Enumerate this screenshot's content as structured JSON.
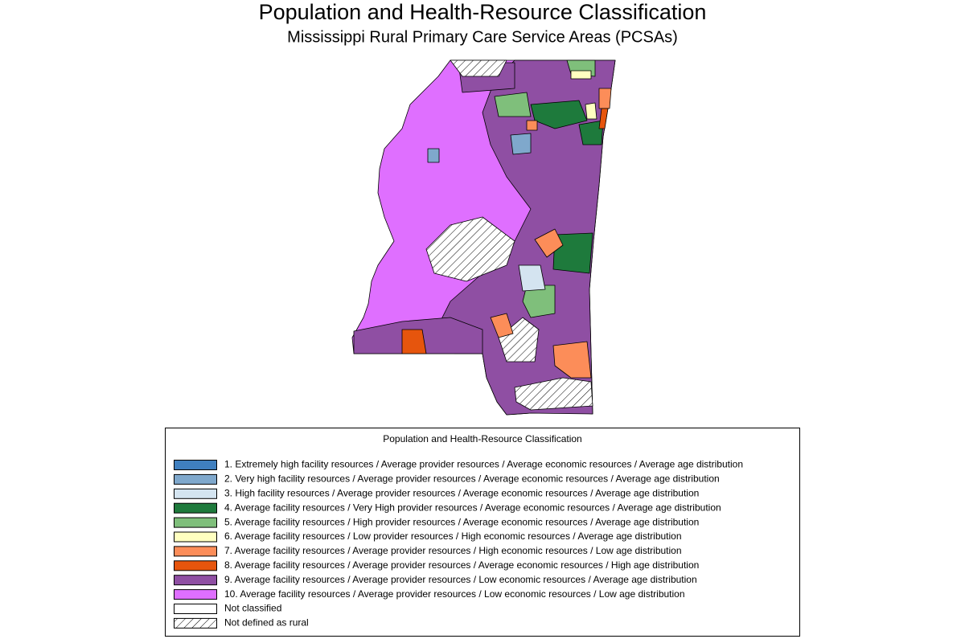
{
  "title": "Population and Health-Resource Classification",
  "subtitle": "Mississippi Rural Primary Care Service Areas (PCSAs)",
  "legend": {
    "title": "Population and Health-Resource Classification",
    "items": [
      {
        "label": "1. Extremely high facility resources / Average provider resources / Average economic resources / Average age distribution",
        "color": "#3f7fbf"
      },
      {
        "label": "2. Very high facility resources / Average provider resources / Average economic resources / Average age distribution",
        "color": "#7fa8cc"
      },
      {
        "label": "3. High facility resources / Average provider resources / Average economic resources / Average age distribution",
        "color": "#d4e4f0"
      },
      {
        "label": "4. Average facility resources / Very High provider resources / Average economic resources / Average age distribution",
        "color": "#1e7a3c"
      },
      {
        "label": "5. Average facility resources / High provider resources / Average economic resources / Average age distribution",
        "color": "#7fbf7b"
      },
      {
        "label": "6. Average facility resources / Low provider resources / High economic resources / Average age distribution",
        "color": "#ffffc0"
      },
      {
        "label": "7. Average facility resources / Average provider resources / High economic resources / Low age distribution",
        "color": "#fc8d59"
      },
      {
        "label": "8. Average facility resources / Average provider resources / Average economic resources / High age distribution",
        "color": "#e6550d"
      },
      {
        "label": "9. Average facility resources / Average provider resources / Low economic resources / Average age distribution",
        "color": "#8f4fa3"
      },
      {
        "label": "10. Average facility resources / Average provider resources / Low economic resources / Low age distribution",
        "color": "#df6fff"
      },
      {
        "label": "Not classified",
        "color": "#ffffff"
      },
      {
        "label": "Not defined as rural",
        "color": "#ffffff",
        "hatched": true
      }
    ]
  }
}
